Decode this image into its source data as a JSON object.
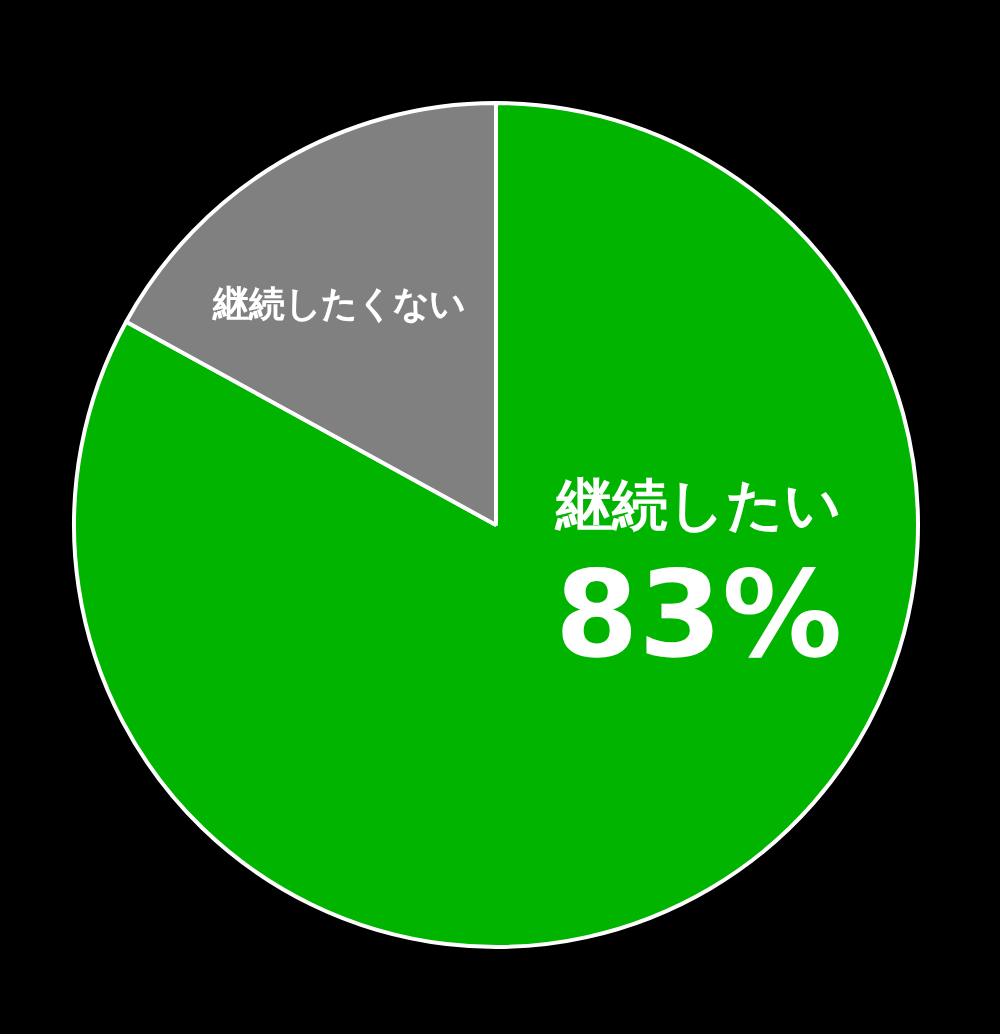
{
  "chart_data": {
    "type": "pie",
    "categories": [
      "継続したい",
      "継続したくない"
    ],
    "values": [
      83,
      17
    ],
    "colors": [
      "#00b400",
      "#808080"
    ],
    "value_labels": [
      "83%",
      null
    ],
    "legend": false
  }
}
